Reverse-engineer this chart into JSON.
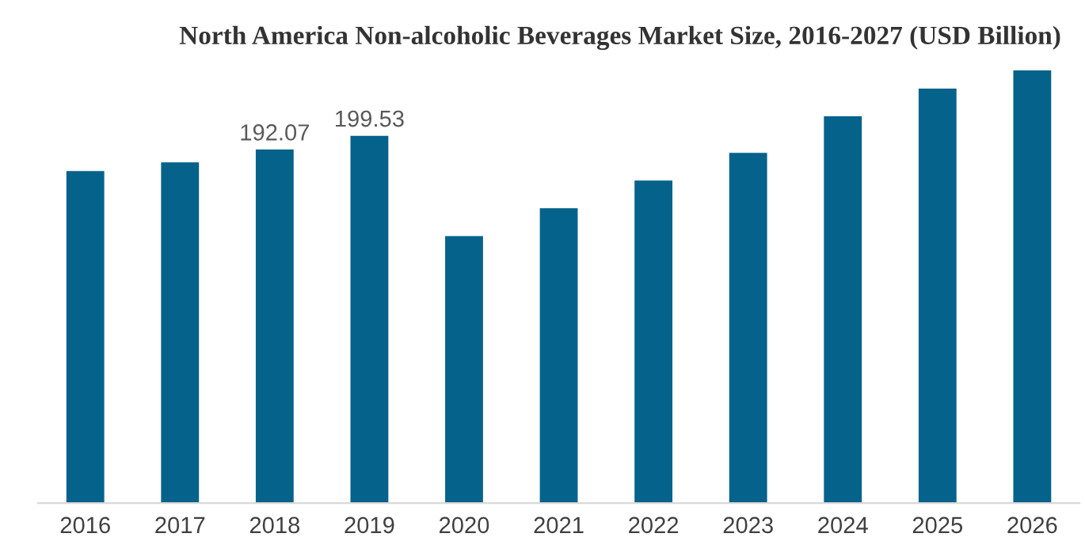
{
  "chart_data": {
    "type": "bar",
    "title": "North America Non-alcoholic Beverages Market Size, 2016-2027 (USD Billion)",
    "categories": [
      "2016",
      "2017",
      "2018",
      "2019",
      "2020",
      "2021",
      "2022",
      "2023",
      "2024",
      "2025",
      "2026"
    ],
    "values": [
      180.4,
      185.1,
      192.07,
      199.53,
      145.1,
      160.2,
      175.2,
      190.3,
      210.1,
      225.2,
      235.1
    ],
    "value_labels": [
      null,
      null,
      "192.07",
      "199.53",
      null,
      null,
      null,
      null,
      null,
      null,
      null
    ],
    "color": "#05628a",
    "grid": false,
    "legend": false
  }
}
